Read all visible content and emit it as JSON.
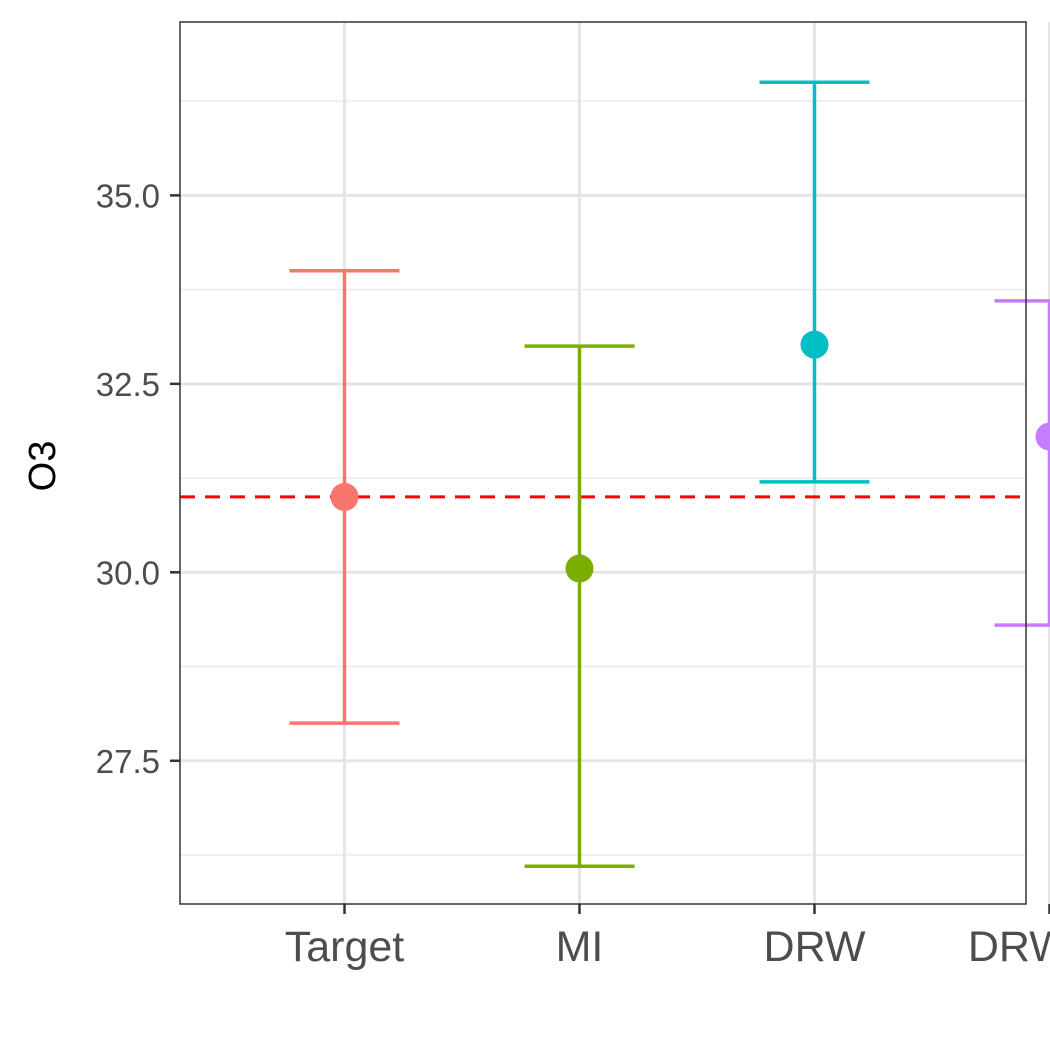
{
  "chart_data": {
    "type": "errorbar",
    "title": "",
    "xlabel": "",
    "ylabel": "O3",
    "categories": [
      "Target",
      "MI",
      "DRW",
      "DRW-MI"
    ],
    "points": [
      {
        "category": "Target",
        "value": 31.0,
        "lower": 28.0,
        "upper": 34.0,
        "color": "#F8766D"
      },
      {
        "category": "MI",
        "value": 30.05,
        "lower": 26.1,
        "upper": 33.0,
        "color": "#7CAE00"
      },
      {
        "category": "DRW",
        "value": 33.02,
        "lower": 31.2,
        "upper": 36.5,
        "color": "#00BFC4"
      },
      {
        "category": "DRW-MI",
        "value": 31.8,
        "lower": 29.3,
        "upper": 33.6,
        "color": "#C77CFF"
      }
    ],
    "reference_line": {
      "value": 31.0,
      "style": "dashed",
      "color": "#FF0000"
    },
    "yticks": [
      27.5,
      30.0,
      32.5,
      35.0
    ],
    "ytick_labels": [
      "27.5",
      "30.0",
      "32.5",
      "35.0"
    ],
    "ylim": [
      25.6,
      37.3
    ],
    "grid": true,
    "legend": "none"
  }
}
